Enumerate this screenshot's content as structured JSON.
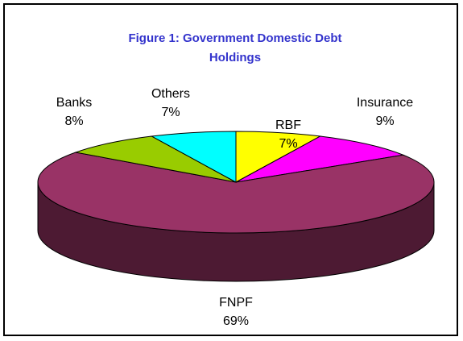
{
  "chart_data": {
    "type": "pie3d",
    "title": "Figure 1: Government Domestic Debt Holdings",
    "categories": [
      "RBF",
      "Insurance",
      "FNPF",
      "Banks",
      "Others"
    ],
    "values": [
      7,
      9,
      69,
      8,
      7
    ],
    "value_labels": [
      "7%",
      "9%",
      "69%",
      "8%",
      "7%"
    ],
    "colors": [
      "#ffff00",
      "#ff00ff",
      "#993366",
      "#99cc00",
      "#00ffff"
    ]
  }
}
